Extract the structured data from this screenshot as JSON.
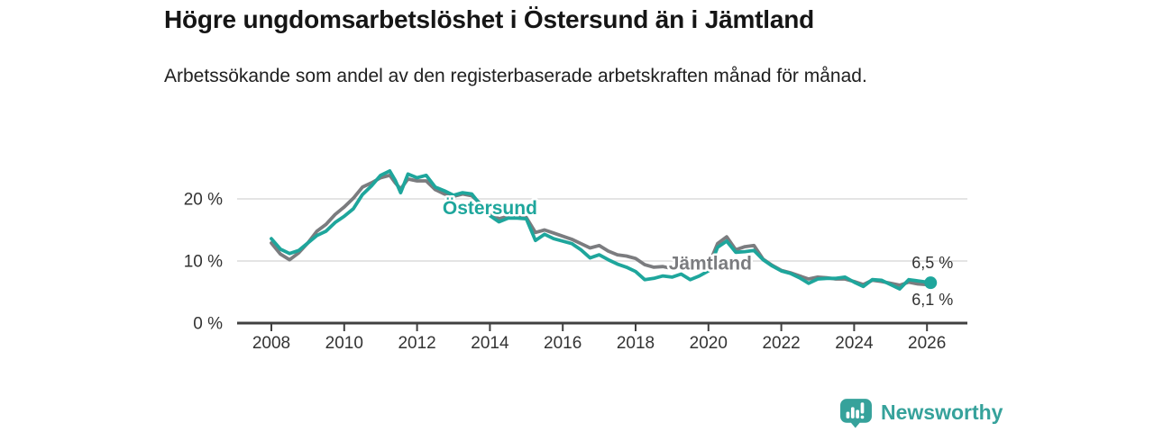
{
  "chart_data": {
    "type": "line",
    "title": "Högre ungdomsarbetslöshet i Östersund än i Jämtland",
    "subtitle": "Arbetssökande som andel av den registerbaserade arbetskraften månad för månad.",
    "unit": "%",
    "xlim": [
      2007.05,
      2027.1
    ],
    "ylim": [
      0,
      26
    ],
    "grid": "horizontal",
    "legend_position": "inline-labels",
    "colors": {
      "ostersund": "#1ea69c",
      "jamtland": "#7b7c7f",
      "axis": "#404040",
      "gridline": "#dcdcdc",
      "tick_text": "#333333",
      "value_label_text": "#333333"
    },
    "x_ticks": [
      {
        "value": 2008,
        "label": "2008"
      },
      {
        "value": 2010,
        "label": "2010"
      },
      {
        "value": 2012,
        "label": "2012"
      },
      {
        "value": 2014,
        "label": "2014"
      },
      {
        "value": 2016,
        "label": "2016"
      },
      {
        "value": 2018,
        "label": "2018"
      },
      {
        "value": 2020,
        "label": "2020"
      },
      {
        "value": 2022,
        "label": "2022"
      },
      {
        "value": 2024,
        "label": "2024"
      },
      {
        "value": 2026,
        "label": "2026"
      }
    ],
    "y_ticks": [
      {
        "value": 0,
        "label": "0 %"
      },
      {
        "value": 10,
        "label": "10 %"
      },
      {
        "value": 20,
        "label": "20 %"
      }
    ],
    "series": [
      {
        "name": "Jämtland",
        "color": "#7b7c7f",
        "end_dot": false,
        "inline_label": {
          "text": "Jämtland",
          "x": 2020.05,
          "y": 9.7
        },
        "end_value_label": {
          "text": "6,1 %",
          "position": "below"
        },
        "points": [
          [
            2008.0,
            12.9
          ],
          [
            2008.25,
            11.1
          ],
          [
            2008.5,
            10.2
          ],
          [
            2008.75,
            11.3
          ],
          [
            2009.0,
            12.9
          ],
          [
            2009.25,
            14.8
          ],
          [
            2009.5,
            15.9
          ],
          [
            2009.75,
            17.5
          ],
          [
            2010.0,
            18.7
          ],
          [
            2010.25,
            20.1
          ],
          [
            2010.5,
            21.9
          ],
          [
            2010.75,
            22.6
          ],
          [
            2011.0,
            23.4
          ],
          [
            2011.25,
            23.8
          ],
          [
            2011.4,
            22.6
          ],
          [
            2011.55,
            21.6
          ],
          [
            2011.75,
            23.2
          ],
          [
            2012.0,
            22.9
          ],
          [
            2012.25,
            22.9
          ],
          [
            2012.5,
            21.5
          ],
          [
            2012.75,
            20.8
          ],
          [
            2013.0,
            20.4
          ],
          [
            2013.25,
            20.8
          ],
          [
            2013.5,
            20.5
          ],
          [
            2013.75,
            19.2
          ],
          [
            2014.0,
            17.7
          ],
          [
            2014.25,
            16.8
          ],
          [
            2014.5,
            17.2
          ],
          [
            2014.75,
            17.1
          ],
          [
            2015.0,
            17.0
          ],
          [
            2015.25,
            14.6
          ],
          [
            2015.5,
            15.0
          ],
          [
            2015.75,
            14.5
          ],
          [
            2016.0,
            14.0
          ],
          [
            2016.25,
            13.5
          ],
          [
            2016.5,
            12.8
          ],
          [
            2016.75,
            12.1
          ],
          [
            2017.0,
            12.5
          ],
          [
            2017.25,
            11.6
          ],
          [
            2017.5,
            11.0
          ],
          [
            2017.75,
            10.8
          ],
          [
            2018.0,
            10.4
          ],
          [
            2018.25,
            9.4
          ],
          [
            2018.5,
            9.0
          ],
          [
            2018.75,
            9.1
          ],
          [
            2019.0,
            8.8
          ],
          [
            2019.25,
            9.0
          ],
          [
            2019.5,
            8.7
          ],
          [
            2019.75,
            8.9
          ],
          [
            2020.0,
            9.3
          ],
          [
            2020.25,
            12.8
          ],
          [
            2020.5,
            13.9
          ],
          [
            2020.75,
            11.8
          ],
          [
            2021.0,
            12.3
          ],
          [
            2021.25,
            12.5
          ],
          [
            2021.5,
            10.3
          ],
          [
            2021.75,
            9.3
          ],
          [
            2022.0,
            8.5
          ],
          [
            2022.25,
            8.1
          ],
          [
            2022.5,
            7.6
          ],
          [
            2022.75,
            7.1
          ],
          [
            2023.0,
            7.4
          ],
          [
            2023.25,
            7.3
          ],
          [
            2023.5,
            7.1
          ],
          [
            2023.75,
            7.1
          ],
          [
            2024.0,
            6.7
          ],
          [
            2024.25,
            6.2
          ],
          [
            2024.5,
            6.9
          ],
          [
            2024.75,
            6.7
          ],
          [
            2025.0,
            6.4
          ],
          [
            2025.25,
            6.1
          ],
          [
            2025.5,
            6.6
          ],
          [
            2025.75,
            6.3
          ],
          [
            2026.0,
            6.2
          ],
          [
            2026.1,
            6.1
          ]
        ]
      },
      {
        "name": "Östersund",
        "color": "#1ea69c",
        "end_dot": true,
        "inline_label": {
          "text": "Östersund",
          "x": 2014.0,
          "y": 18.6
        },
        "end_value_label": {
          "text": "6,5 %",
          "position": "above"
        },
        "points": [
          [
            2008.0,
            13.6
          ],
          [
            2008.25,
            11.9
          ],
          [
            2008.5,
            11.2
          ],
          [
            2008.75,
            11.7
          ],
          [
            2009.0,
            12.9
          ],
          [
            2009.25,
            14.1
          ],
          [
            2009.5,
            14.8
          ],
          [
            2009.75,
            16.2
          ],
          [
            2010.0,
            17.2
          ],
          [
            2010.25,
            18.4
          ],
          [
            2010.5,
            20.7
          ],
          [
            2010.75,
            22.1
          ],
          [
            2011.0,
            23.8
          ],
          [
            2011.25,
            24.5
          ],
          [
            2011.4,
            23.0
          ],
          [
            2011.55,
            21.0
          ],
          [
            2011.75,
            24.0
          ],
          [
            2012.0,
            23.4
          ],
          [
            2012.25,
            23.8
          ],
          [
            2012.5,
            21.9
          ],
          [
            2012.75,
            21.3
          ],
          [
            2013.0,
            20.6
          ],
          [
            2013.25,
            21.0
          ],
          [
            2013.5,
            20.8
          ],
          [
            2013.75,
            19.0
          ],
          [
            2014.0,
            17.3
          ],
          [
            2014.25,
            16.3
          ],
          [
            2014.5,
            16.9
          ],
          [
            2014.75,
            16.9
          ],
          [
            2015.0,
            16.8
          ],
          [
            2015.25,
            13.3
          ],
          [
            2015.5,
            14.3
          ],
          [
            2015.75,
            13.6
          ],
          [
            2016.0,
            13.2
          ],
          [
            2016.25,
            12.8
          ],
          [
            2016.5,
            11.8
          ],
          [
            2016.75,
            10.5
          ],
          [
            2017.0,
            11.0
          ],
          [
            2017.25,
            10.2
          ],
          [
            2017.5,
            9.5
          ],
          [
            2017.75,
            9.0
          ],
          [
            2018.0,
            8.3
          ],
          [
            2018.25,
            7.0
          ],
          [
            2018.5,
            7.2
          ],
          [
            2018.75,
            7.6
          ],
          [
            2019.0,
            7.4
          ],
          [
            2019.25,
            7.9
          ],
          [
            2019.5,
            7.0
          ],
          [
            2019.75,
            7.6
          ],
          [
            2020.0,
            8.4
          ],
          [
            2020.25,
            12.2
          ],
          [
            2020.5,
            13.2
          ],
          [
            2020.75,
            11.4
          ],
          [
            2021.0,
            11.5
          ],
          [
            2021.25,
            11.7
          ],
          [
            2021.5,
            10.2
          ],
          [
            2021.75,
            9.2
          ],
          [
            2022.0,
            8.4
          ],
          [
            2022.25,
            8.0
          ],
          [
            2022.5,
            7.3
          ],
          [
            2022.75,
            6.4
          ],
          [
            2023.0,
            7.1
          ],
          [
            2023.25,
            7.2
          ],
          [
            2023.5,
            7.2
          ],
          [
            2023.75,
            7.4
          ],
          [
            2024.0,
            6.6
          ],
          [
            2024.25,
            5.9
          ],
          [
            2024.5,
            7.0
          ],
          [
            2024.75,
            6.9
          ],
          [
            2025.0,
            6.2
          ],
          [
            2025.25,
            5.5
          ],
          [
            2025.5,
            7.0
          ],
          [
            2025.75,
            6.8
          ],
          [
            2026.0,
            6.6
          ],
          [
            2026.1,
            6.5
          ]
        ]
      }
    ]
  },
  "footer": {
    "brand": "Newsworthy"
  }
}
